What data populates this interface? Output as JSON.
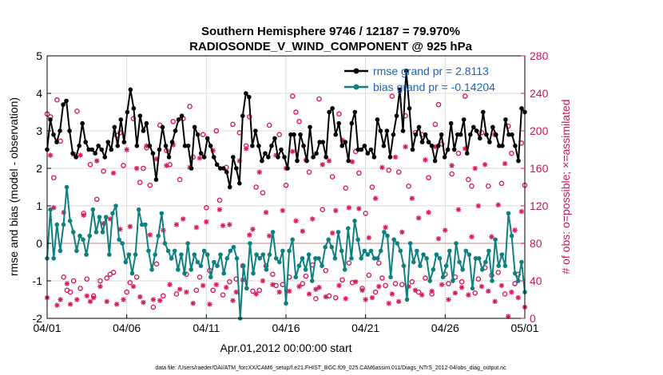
{
  "chart_data": {
    "type": "line",
    "title": "Southern Hemisphere 9746 / 12187 = 79.970%",
    "subtitle": "RADIOSONDE_V_WIND_COMPONENT @ 925 hPa",
    "xlabel": "Apr.01,2012 00:00:00 start",
    "ylabel": "rmse and bias (model - observation)",
    "ylabel_right": "# of obs: o=possible; ×=assimilated",
    "footer": "data file: /Users/raeder/DAI/ATM_forcXX/CAM6_setup/f.e21.FHIST_BGC.f09_025.CAM6assim.011/Diags_NTrS_2012-04/obs_diag_output.nc",
    "x_ticks": [
      "04/01",
      "04/06",
      "04/11",
      "04/16",
      "04/21",
      "04/26",
      "05/01"
    ],
    "x_range_days": [
      0,
      30
    ],
    "ylim": [
      -2,
      5
    ],
    "y_ticks": [
      "-2",
      "-1",
      "0",
      "1",
      "2",
      "3",
      "4",
      "5"
    ],
    "ylim_right": [
      0,
      280
    ],
    "y_ticks_right": [
      "0",
      "40",
      "80",
      "120",
      "160",
      "200",
      "240",
      "280"
    ],
    "zero_line_value": 0,
    "series": [
      {
        "name": "rmse",
        "legend": "rmse grand pr = 2.8113",
        "color": "#000000",
        "values": [
          2.5,
          3.3,
          2.9,
          2.7,
          3.0,
          3.7,
          3.8,
          3.0,
          2.4,
          2.3,
          2.6,
          3.2,
          2.7,
          2.5,
          2.5,
          2.4,
          2.6,
          2.5,
          2.3,
          2.7,
          2.5,
          3.1,
          2.6,
          3.3,
          2.7,
          3.5,
          4.1,
          3.6,
          2.6,
          3.4,
          3.0,
          3.2,
          2.6,
          2.4,
          1.7,
          2.5,
          3.1,
          2.6,
          2.3,
          2.7,
          3.0,
          3.3,
          3.4,
          2.6,
          2.6,
          2.0,
          3.1,
          2.9,
          2.4,
          2.3,
          2.8,
          2.6,
          2.3,
          2.1,
          2.0,
          2.0,
          1.9,
          1.5,
          2.3,
          2.0,
          1.6,
          3.4,
          4.0,
          3.9,
          2.6,
          3.0,
          2.6,
          2.2,
          2.4,
          2.3,
          2.6,
          2.8,
          2.3,
          2.5,
          2.3,
          2.0,
          2.9,
          2.9,
          2.2,
          2.9,
          2.6,
          2.2,
          3.1,
          2.3,
          2.4,
          2.7,
          2.7,
          2.3,
          3.5,
          3.6,
          2.9,
          3.2,
          2.6,
          2.7,
          2.2,
          3.2,
          3.5,
          2.5,
          2.5,
          2.6,
          2.4,
          2.5,
          2.3,
          3.3,
          3.0,
          2.6,
          3.0,
          2.3,
          2.9,
          3.4,
          4.1,
          3.0,
          4.6,
          3.6,
          2.5,
          2.9,
          3.1,
          2.7,
          2.9,
          2.7,
          2.6,
          2.2,
          2.6,
          2.9,
          2.3,
          2.5,
          3.2,
          2.5,
          2.9,
          2.9,
          3.3,
          2.4,
          2.9,
          3.1,
          3.0,
          2.8,
          3.5,
          2.9,
          2.7,
          3.1,
          2.9,
          2.6,
          2.6,
          3.3,
          2.9,
          2.9,
          2.6,
          2.2,
          3.6,
          3.5
        ]
      },
      {
        "name": "bias",
        "legend": "bias grand pr = -0.14204",
        "color": "#0e8080",
        "values": [
          -0.4,
          0.9,
          -0.4,
          0.5,
          -0.2,
          0.5,
          1.5,
          0.6,
          0.3,
          -0.2,
          0.2,
          0.1,
          -0.3,
          0.2,
          0.9,
          0.3,
          0.7,
          0.3,
          0.7,
          -0.3,
          0.8,
          1.0,
          0.1,
          0.0,
          -0.5,
          -0.3,
          -0.8,
          -0.3,
          0.9,
          0.5,
          0.5,
          -0.2,
          -0.7,
          -0.3,
          0.2,
          0.8,
          0.0,
          -0.2,
          -0.4,
          -0.2,
          -0.7,
          -0.3,
          -0.8,
          0.0,
          -0.7,
          -0.3,
          -0.5,
          -0.6,
          -0.2,
          -0.3,
          -0.9,
          -0.5,
          -0.6,
          -0.3,
          -0.8,
          -0.4,
          -0.2,
          -0.1,
          -0.4,
          -2.0,
          -0.6,
          -1.2,
          0.0,
          -0.8,
          -0.3,
          -0.4,
          -0.3,
          -0.7,
          -0.3,
          0.3,
          -0.4,
          -0.5,
          -0.2,
          -1.6,
          -0.2,
          0.1,
          -0.9,
          -0.6,
          -0.4,
          -0.7,
          -0.3,
          -1.0,
          -0.4,
          -0.4,
          -0.6,
          -0.1,
          0.1,
          -0.1,
          -0.4,
          0.3,
          -0.2,
          -0.7,
          0.4,
          -0.4,
          0.6,
          0.1,
          -0.4,
          -0.2,
          -0.3,
          -0.2,
          -0.4,
          -0.4,
          -0.2,
          0.3,
          0.2,
          -0.9,
          0.1,
          0.0,
          -0.2,
          -0.6,
          -1.5,
          0.0,
          -0.5,
          -0.2,
          -0.6,
          -0.3,
          -0.4,
          -1.0,
          -0.7,
          -0.3,
          -0.4,
          -0.9,
          -0.6,
          -0.2,
          -1.0,
          0.0,
          -0.5,
          -0.7,
          -0.2,
          -0.3,
          -1.2,
          -0.4,
          -0.4,
          -0.7,
          -0.5,
          -0.2,
          -1.0,
          0.1,
          -0.6,
          -0.3,
          -0.6,
          0.8,
          0.2,
          -0.8,
          -1.0,
          -0.5,
          -1.3
        ]
      }
    ],
    "obs_possible": [
      218,
      215,
      150,
      233,
      189,
      44,
      30,
      28,
      40,
      221,
      32,
      112,
      42,
      164,
      24,
      127,
      40,
      157,
      43,
      47,
      49,
      195,
      198,
      163,
      28,
      38,
      213,
      44,
      145,
      160,
      182,
      142,
      12,
      58,
      206,
      24,
      179,
      164,
      210,
      26,
      148,
      213,
      47,
      226,
      172,
      30,
      44,
      196,
      118,
      51,
      30,
      200,
      126,
      25,
      161,
      39,
      207,
      42,
      198,
      56,
      184,
      215,
      29,
      140,
      30,
      134,
      56,
      206,
      47,
      35,
      196,
      36,
      142,
      44,
      237,
      220,
      210,
      37,
      45,
      156,
      57,
      21,
      234,
      116,
      51,
      24,
      151,
      22,
      218,
      41,
      139,
      59,
      38,
      178,
      155,
      32,
      112,
      46,
      140,
      28,
      59,
      43,
      35,
      158,
      237,
      37,
      156,
      36,
      216,
      141,
      39,
      198,
      28,
      196,
      43,
      150,
      26,
      207,
      228,
      186,
      47,
      37,
      154,
      44,
      176,
      39,
      237,
      148,
      141,
      27,
      42,
      198,
      54,
      141,
      46,
      196,
      49,
      144,
      26,
      205,
      176,
      37,
      47,
      187,
      142
    ],
    "obs_assimilated": [
      22,
      174,
      118,
      14,
      20,
      113,
      37,
      15,
      175,
      20,
      174,
      110,
      24,
      18,
      22,
      168,
      34,
      101,
      18,
      106,
      155,
      15,
      95,
      20,
      180,
      98,
      34,
      160,
      23,
      17,
      184,
      89,
      20,
      170,
      19,
      94,
      163,
      36,
      185,
      100,
      31,
      106,
      28,
      161,
      16,
      97,
      171,
      35,
      103,
      15,
      179,
      36,
      116,
      99,
      33,
      100,
      19,
      28,
      168,
      41,
      181,
      89,
      95,
      26,
      156,
      40,
      113,
      88,
      36,
      174,
      28,
      115,
      160,
      29,
      178,
      104,
      34,
      93,
      169,
      26,
      106,
      31,
      33,
      164,
      23,
      168,
      91,
      115,
      35,
      190,
      21,
      118,
      167,
      39,
      117,
      30,
      20,
      86,
      22,
      128,
      34,
      161,
      97,
      16,
      26,
      172,
      18,
      92,
      183,
      34,
      128,
      30,
      107,
      25,
      169,
      113,
      29,
      183,
      85,
      36,
      94,
      20,
      163,
      27,
      116,
      33,
      181,
      25,
      87,
      160,
      120,
      34,
      164,
      29,
      87,
      18,
      121,
      35,
      165,
      2,
      28,
      94,
      22,
      114,
      12
    ]
  }
}
